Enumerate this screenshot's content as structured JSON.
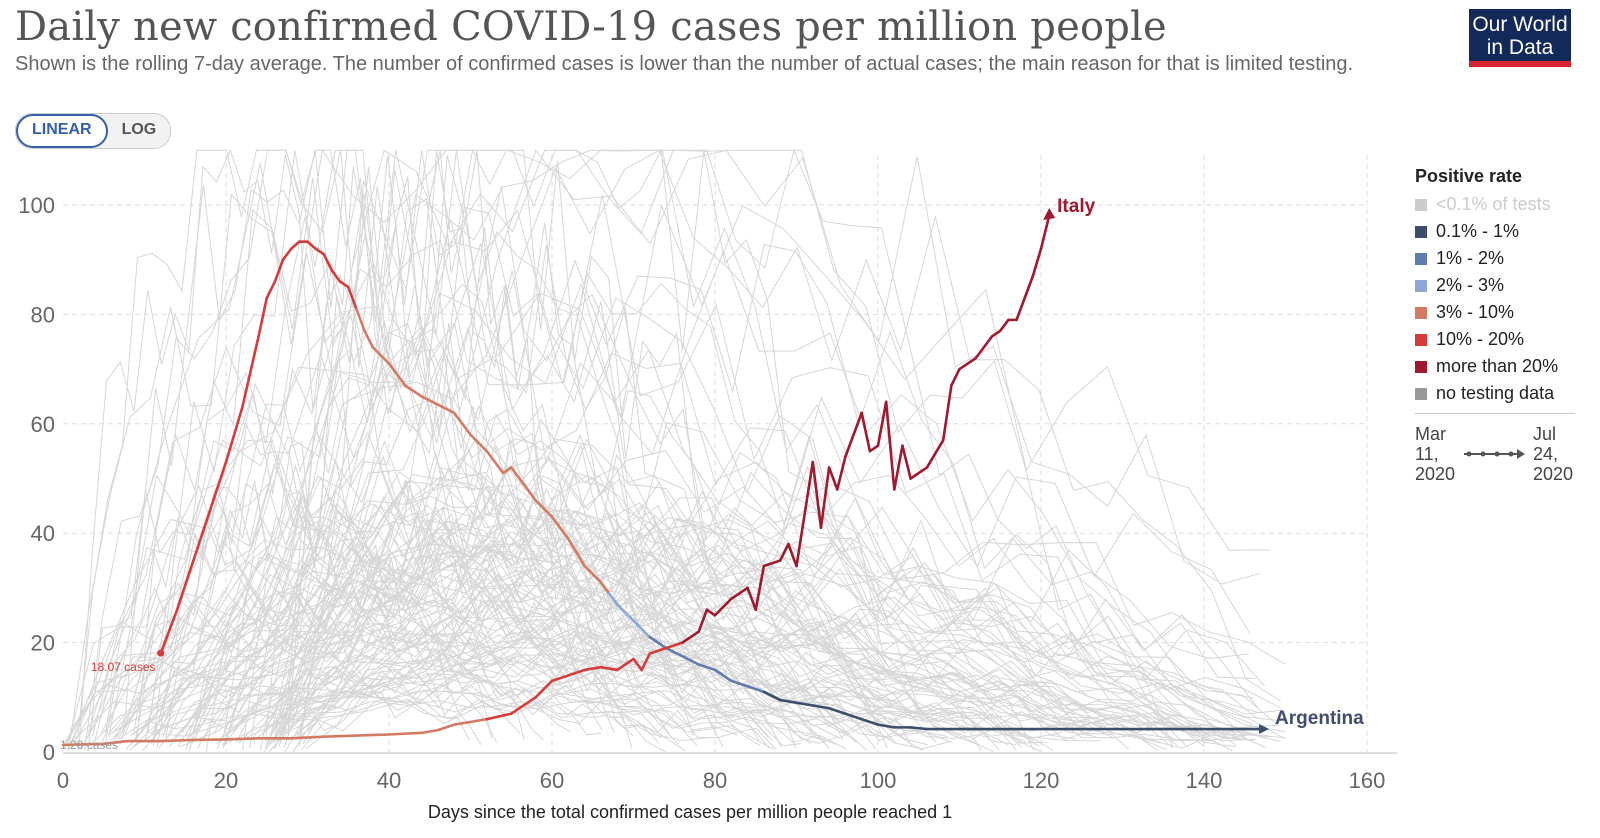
{
  "header": {
    "title": "Daily new confirmed COVID-19 cases per million people",
    "subtitle": "Shown is the rolling 7-day average. The number of confirmed cases is lower than the number of actual cases; the main reason for that is limited testing.",
    "logo_line1": "Our World",
    "logo_line2": "in Data"
  },
  "controls": {
    "linear_label": "LINEAR",
    "log_label": "LOG",
    "active": "LINEAR"
  },
  "legend": {
    "title": "Positive rate",
    "items": [
      {
        "label": "<0.1% of tests",
        "color": "#cccccc"
      },
      {
        "label": "0.1% - 1%",
        "color": "#3e4d6c"
      },
      {
        "label": "1% - 2%",
        "color": "#5f7bb0"
      },
      {
        "label": "2% - 3%",
        "color": "#8ea6d8"
      },
      {
        "label": "3% - 10%",
        "color": "#d47a62"
      },
      {
        "label": "10% - 20%",
        "color": "#d63b3b"
      },
      {
        "label": "more than 20%",
        "color": "#a0192e"
      },
      {
        "label": "no testing data",
        "color": "#999999"
      }
    ],
    "timeline_start": [
      "Mar",
      "11,",
      "2020"
    ],
    "timeline_end": [
      "Jul",
      "24,",
      "2020"
    ]
  },
  "chart_data": {
    "type": "line",
    "title": "Daily new confirmed COVID-19 cases per million people",
    "xlabel": "Days since the total confirmed cases per million people reached 1",
    "ylabel": "",
    "xlim": [
      0,
      160
    ],
    "ylim": [
      0,
      100
    ],
    "x_ticks": [
      0,
      20,
      40,
      60,
      80,
      100,
      120,
      140,
      160
    ],
    "y_ticks": [
      0,
      20,
      40,
      60,
      80,
      100
    ],
    "grid": true,
    "legend_position": "right",
    "background_note": "many other countries drawn as faint grey lines",
    "series": [
      {
        "name": "Argentina",
        "start_label": "18.07 cases",
        "points": [
          [
            12,
            18.07,
            "b"
          ],
          [
            14,
            26,
            "b"
          ],
          [
            16,
            35,
            "b"
          ],
          [
            18,
            44,
            "b"
          ],
          [
            20,
            53,
            "b"
          ],
          [
            22,
            63,
            "b"
          ],
          [
            24,
            76,
            "b"
          ],
          [
            25,
            83,
            "b"
          ],
          [
            26,
            86,
            "b"
          ],
          [
            27,
            90,
            "b"
          ],
          [
            28,
            92,
            "b"
          ],
          [
            29,
            93.3,
            "b"
          ],
          [
            30,
            93.3,
            "b"
          ],
          [
            31,
            92,
            "b"
          ],
          [
            32,
            91,
            "b"
          ],
          [
            33,
            88,
            "b"
          ],
          [
            34,
            86,
            "b"
          ],
          [
            35,
            85,
            "b"
          ],
          [
            36,
            81,
            "b"
          ],
          [
            37,
            77,
            "c"
          ],
          [
            38,
            74,
            "c"
          ],
          [
            40,
            71,
            "c"
          ],
          [
            42,
            67,
            "c"
          ],
          [
            44,
            65,
            "c"
          ],
          [
            46,
            63.5,
            "c"
          ],
          [
            48,
            62,
            "c"
          ],
          [
            50,
            58,
            "c"
          ],
          [
            52,
            55,
            "c"
          ],
          [
            54,
            51,
            "c"
          ],
          [
            55,
            52,
            "c"
          ],
          [
            56,
            50,
            "c"
          ],
          [
            58,
            46,
            "c"
          ],
          [
            60,
            43,
            "c"
          ],
          [
            62,
            39,
            "c"
          ],
          [
            64,
            34,
            "c"
          ],
          [
            66,
            31,
            "c"
          ],
          [
            67,
            29,
            "c"
          ],
          [
            68,
            27,
            "e"
          ],
          [
            70,
            24,
            "e"
          ],
          [
            72,
            21,
            "e"
          ],
          [
            74,
            19,
            "f"
          ],
          [
            76,
            17.5,
            "f"
          ],
          [
            78,
            16,
            "f"
          ],
          [
            80,
            15,
            "f"
          ],
          [
            82,
            13,
            "f"
          ],
          [
            84,
            12,
            "f"
          ],
          [
            86,
            11,
            "f"
          ],
          [
            88,
            9.5,
            "g"
          ],
          [
            90,
            9,
            "g"
          ],
          [
            92,
            8.5,
            "g"
          ],
          [
            94,
            8,
            "g"
          ],
          [
            96,
            7,
            "g"
          ],
          [
            98,
            6,
            "g"
          ],
          [
            100,
            5,
            "g"
          ],
          [
            102,
            4.5,
            "g"
          ],
          [
            104,
            4.5,
            "g"
          ],
          [
            106,
            4.2,
            "g"
          ]
        ]
      },
      {
        "name": "Italy",
        "start_label": "1.28 cases",
        "points": [
          [
            0,
            1.28,
            "c"
          ],
          [
            5,
            1.5,
            "c"
          ],
          [
            8,
            2,
            "c"
          ],
          [
            12,
            2,
            "c"
          ],
          [
            16,
            2.2,
            "c"
          ],
          [
            20,
            2.3,
            "c"
          ],
          [
            24,
            2.5,
            "c"
          ],
          [
            28,
            2.5,
            "c"
          ],
          [
            32,
            2.8,
            "c"
          ],
          [
            36,
            3,
            "c"
          ],
          [
            40,
            3.2,
            "c"
          ],
          [
            44,
            3.5,
            "c"
          ],
          [
            46,
            4,
            "c"
          ],
          [
            48,
            5,
            "c"
          ],
          [
            52,
            6,
            "c"
          ],
          [
            55,
            7,
            "b"
          ],
          [
            58,
            10,
            "b"
          ],
          [
            60,
            13,
            "b"
          ],
          [
            62,
            14,
            "b"
          ],
          [
            64,
            15,
            "b"
          ],
          [
            66,
            15.5,
            "b"
          ],
          [
            68,
            15,
            "b"
          ],
          [
            70,
            17,
            "b"
          ],
          [
            71,
            15,
            "b"
          ],
          [
            72,
            18,
            "b"
          ],
          [
            74,
            19,
            "b"
          ],
          [
            76,
            20,
            "b"
          ],
          [
            78,
            22,
            "a"
          ],
          [
            79,
            26,
            "a"
          ],
          [
            80,
            25,
            "a"
          ],
          [
            82,
            28,
            "a"
          ],
          [
            84,
            30,
            "a"
          ],
          [
            85,
            26,
            "a"
          ],
          [
            86,
            34,
            "a"
          ],
          [
            88,
            35,
            "a"
          ],
          [
            89,
            38,
            "a"
          ],
          [
            90,
            34,
            "a"
          ],
          [
            92,
            53,
            "a"
          ],
          [
            93,
            41,
            "a"
          ],
          [
            94,
            52,
            "a"
          ],
          [
            95,
            48,
            "a"
          ],
          [
            96,
            54,
            "a"
          ],
          [
            98,
            62,
            "a"
          ],
          [
            99,
            55,
            "a"
          ],
          [
            100,
            56,
            "a"
          ],
          [
            101,
            64,
            "a"
          ],
          [
            102,
            48,
            "a"
          ],
          [
            103,
            56,
            "a"
          ],
          [
            104,
            50,
            "a"
          ],
          [
            106,
            52,
            "a"
          ],
          [
            108,
            57,
            "a"
          ],
          [
            109,
            67,
            "a"
          ],
          [
            110,
            70,
            "a"
          ],
          [
            112,
            72,
            "a"
          ],
          [
            114,
            76,
            "a"
          ],
          [
            115,
            77,
            "a"
          ],
          [
            116,
            79,
            "a"
          ],
          [
            117,
            79,
            "a"
          ],
          [
            118,
            83,
            "a"
          ],
          [
            119,
            87,
            "a"
          ],
          [
            120,
            92,
            "a"
          ],
          [
            121,
            98,
            "a"
          ]
        ]
      }
    ]
  }
}
